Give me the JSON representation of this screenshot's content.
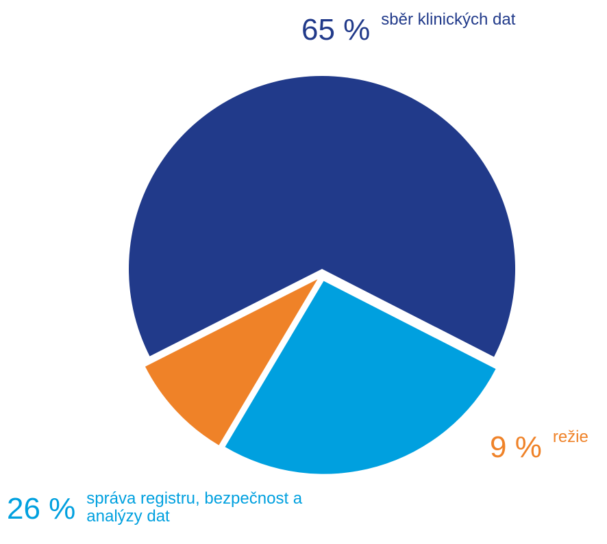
{
  "chart_data": {
    "type": "pie",
    "categories": [
      "sběr klinických dat",
      "správa registru, bezpečnost a analýzy dat",
      "režie"
    ],
    "values": [
      65,
      26,
      9
    ],
    "value_labels": [
      "65 %",
      "26 %",
      "9 %"
    ],
    "colors": [
      "#213a8a",
      "#00a0df",
      "#ef8228"
    ]
  }
}
